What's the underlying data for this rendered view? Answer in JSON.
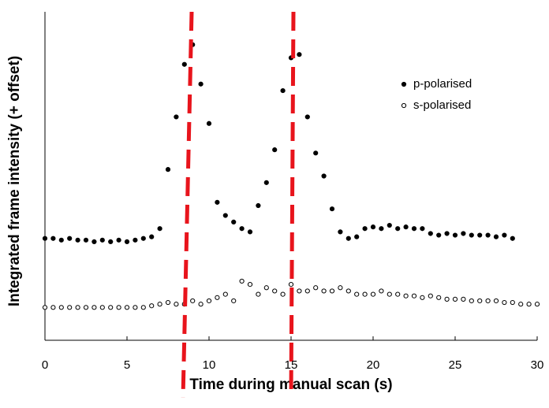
{
  "chart_data": {
    "type": "scatter",
    "xlabel": "Time during manual scan (s)",
    "ylabel": "Integrated frame intensity (+ offset)",
    "xlim": [
      0,
      30
    ],
    "xticks": [
      0,
      5,
      10,
      15,
      20,
      25,
      30
    ],
    "ylim": [
      0,
      100
    ],
    "legend": "upper right",
    "series": [
      {
        "name": "p-polarised",
        "color": "#000000",
        "marker": "filled",
        "x": [
          0,
          0.5,
          1,
          1.5,
          2,
          2.5,
          3,
          3.5,
          4,
          4.5,
          5,
          5.5,
          6,
          6.5,
          7,
          7.5,
          8,
          8.5,
          9,
          9.5,
          10,
          10.5,
          11,
          11.5,
          12,
          12.5,
          13,
          13.5,
          14,
          14.5,
          15,
          15.5,
          16,
          16.5,
          17,
          17.5,
          18,
          18.5,
          19,
          19.5,
          20,
          20.5,
          21,
          21.5,
          22,
          22.5,
          23,
          23.5,
          24,
          24.5,
          25,
          25.5,
          26,
          26.5,
          27,
          27.5,
          28,
          28.5
        ],
        "values": [
          31,
          31,
          30.5,
          31,
          30.5,
          30.5,
          30,
          30.5,
          30,
          30.5,
          30,
          30.5,
          31,
          31.5,
          34,
          52,
          68,
          84,
          90,
          78,
          66,
          42,
          38,
          36,
          34,
          33,
          41,
          48,
          58,
          76,
          86,
          87,
          68,
          57,
          50,
          40,
          33,
          31,
          31.5,
          34,
          34.5,
          34,
          35,
          34,
          34.5,
          34,
          34,
          32.5,
          32,
          32.5,
          32,
          32.5,
          32,
          32,
          32,
          31.5,
          32,
          31
        ]
      },
      {
        "name": "s-polarised",
        "color": "#000000",
        "marker": "open",
        "x": [
          0,
          0.5,
          1,
          1.5,
          2,
          2.5,
          3,
          3.5,
          4,
          4.5,
          5,
          5.5,
          6,
          6.5,
          7,
          7.5,
          8,
          8.5,
          9,
          9.5,
          10,
          10.5,
          11,
          11.5,
          12,
          12.5,
          13,
          13.5,
          14,
          14.5,
          15,
          15.5,
          16,
          16.5,
          17,
          17.5,
          18,
          18.5,
          19,
          19.5,
          20,
          20.5,
          21,
          21.5,
          22,
          22.5,
          23,
          23.5,
          24,
          24.5,
          25,
          25.5,
          26,
          26.5,
          27,
          27.5,
          28,
          28.5,
          29,
          29.5,
          30
        ],
        "values": [
          10,
          10,
          10,
          10,
          10,
          10,
          10,
          10,
          10,
          10,
          10,
          10,
          10,
          10.5,
          11,
          11.5,
          11,
          11,
          12,
          11,
          12,
          13,
          14,
          12,
          18,
          17,
          14,
          16,
          15,
          14,
          17,
          15,
          15,
          16,
          15,
          15,
          16,
          15,
          14,
          14,
          14,
          15,
          14,
          14,
          13.5,
          13.5,
          13,
          13.5,
          13,
          12.5,
          12.5,
          12.5,
          12,
          12,
          12,
          12,
          11.5,
          11.5,
          11,
          11,
          11
        ]
      }
    ]
  }
}
